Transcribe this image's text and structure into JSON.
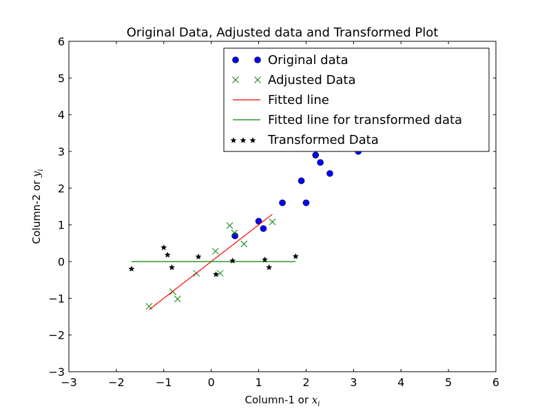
{
  "chart_data": {
    "type": "scatter",
    "title": "Original Data, Adjusted data and Transformed Plot",
    "xlabel": {
      "prefix": "Column-1 or ",
      "var": "x",
      "sub": "i"
    },
    "ylabel": {
      "prefix": "Column-2 or ",
      "var": "y",
      "sub": "i"
    },
    "xlim": [
      -3,
      6
    ],
    "ylim": [
      -3,
      6
    ],
    "xticks": [
      -3,
      -2,
      -1,
      0,
      1,
      2,
      3,
      4,
      5,
      6
    ],
    "yticks": [
      -3,
      -2,
      -1,
      0,
      1,
      2,
      3,
      4,
      5,
      6
    ],
    "xtick_labels": [
      "−3",
      "−2",
      "−1",
      "0",
      "1",
      "2",
      "3",
      "4",
      "5",
      "6"
    ],
    "ytick_labels": [
      "−3",
      "−2",
      "−1",
      "0",
      "1",
      "2",
      "3",
      "4",
      "5",
      "6"
    ],
    "grid": false,
    "legend_position": "top-right",
    "series": [
      {
        "name": "Original data",
        "kind": "markers",
        "marker": "circle",
        "color": "#0000ff",
        "points": [
          [
            0.5,
            0.7
          ],
          [
            1.0,
            1.1
          ],
          [
            1.1,
            0.9
          ],
          [
            1.5,
            1.6
          ],
          [
            1.9,
            2.2
          ],
          [
            2.0,
            1.6
          ],
          [
            2.2,
            2.9
          ],
          [
            2.3,
            2.7
          ],
          [
            2.5,
            2.4
          ],
          [
            3.1,
            3.0
          ]
        ]
      },
      {
        "name": "Adjusted Data",
        "kind": "markers",
        "marker": "x",
        "color": "#008000",
        "points": [
          [
            -1.31,
            -1.22
          ],
          [
            -0.81,
            -0.82
          ],
          [
            -0.71,
            -1.02
          ],
          [
            -0.31,
            -0.32
          ],
          [
            0.09,
            0.28
          ],
          [
            0.19,
            -0.32
          ],
          [
            0.39,
            0.98
          ],
          [
            0.49,
            0.78
          ],
          [
            0.69,
            0.48
          ],
          [
            1.29,
            1.08
          ]
        ]
      },
      {
        "name": "Fitted line",
        "kind": "line",
        "color": "#ff0000",
        "points": [
          [
            -1.31,
            -1.31
          ],
          [
            1.29,
            1.29
          ]
        ]
      },
      {
        "name": "Fitted line for transformed data",
        "kind": "line",
        "color": "#008000",
        "points": [
          [
            -1.68,
            0.0
          ],
          [
            1.78,
            0.0
          ]
        ]
      },
      {
        "name": "Transformed Data",
        "kind": "markers",
        "marker": "star",
        "color": "#000000",
        "points": [
          [
            -1.68,
            -0.2
          ],
          [
            -1.0,
            0.38
          ],
          [
            -0.92,
            0.18
          ],
          [
            -0.83,
            -0.16
          ],
          [
            -0.27,
            0.13
          ],
          [
            0.1,
            -0.35
          ],
          [
            0.45,
            0.02
          ],
          [
            1.13,
            0.05
          ],
          [
            1.22,
            -0.16
          ],
          [
            1.78,
            0.14
          ]
        ]
      }
    ]
  }
}
